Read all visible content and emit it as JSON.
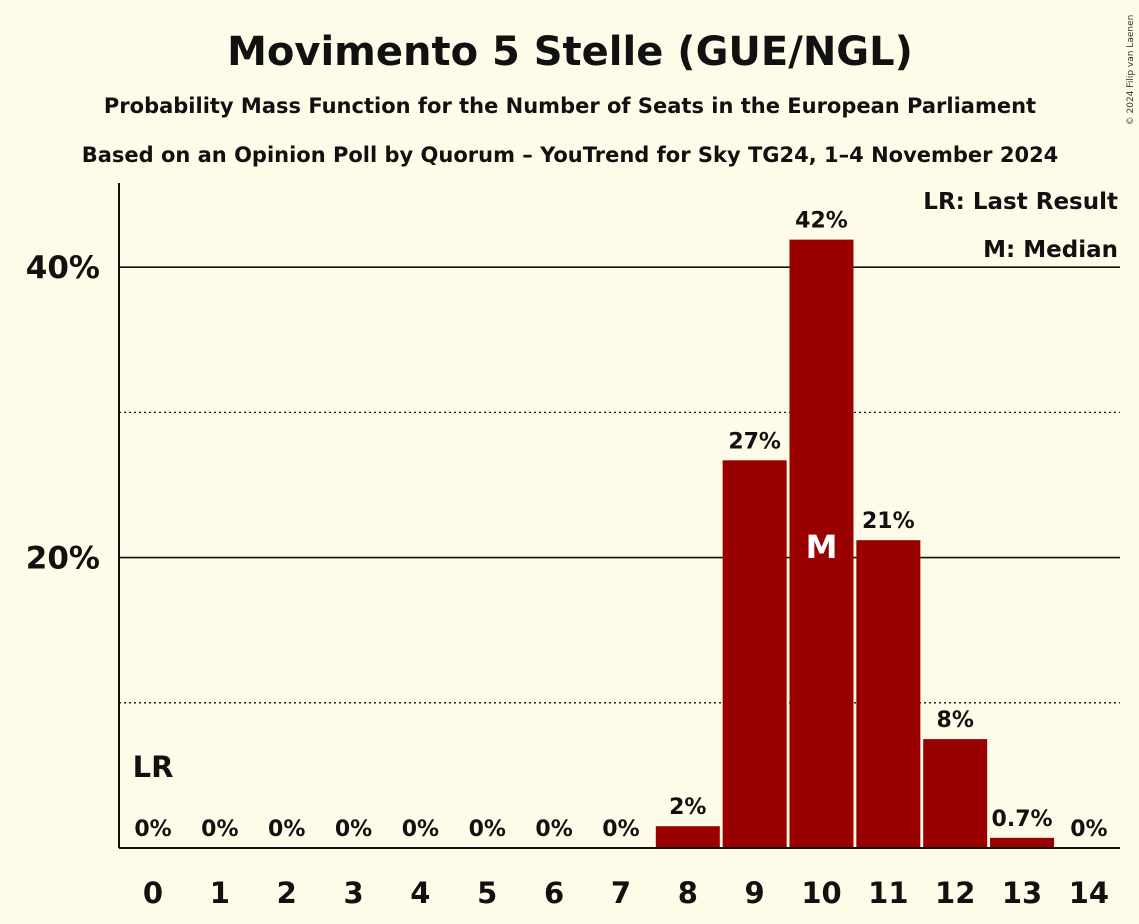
{
  "chart_data": {
    "type": "bar",
    "title": "Movimento 5 Stelle (GUE/NGL)",
    "subtitle": "Probability Mass Function for the Number of Seats in the European Parliament",
    "subtitle2": "Based on an Opinion Poll by Quorum – YouTrend for Sky TG24, 1–4 November 2024",
    "categories": [
      "0",
      "1",
      "2",
      "3",
      "4",
      "5",
      "6",
      "7",
      "8",
      "9",
      "10",
      "11",
      "12",
      "13",
      "14"
    ],
    "values": [
      0,
      0,
      0,
      0,
      0,
      0,
      0,
      0,
      1.5,
      26.7,
      41.9,
      21.2,
      7.5,
      0.7,
      0
    ],
    "labels": [
      "0%",
      "0%",
      "0%",
      "0%",
      "0%",
      "0%",
      "0%",
      "0%",
      "2%",
      "27%",
      "42%",
      "21%",
      "8%",
      "0.7%",
      "0%"
    ],
    "ylim": [
      0,
      46
    ],
    "yticks": [
      {
        "value": 20,
        "label": "20%"
      },
      {
        "value": 40,
        "label": "40%"
      }
    ],
    "minor_gridlines": [
      10,
      30
    ],
    "bar_color": "#990000",
    "last_result_index": 0,
    "median_index": 10,
    "last_result_marker": "LR",
    "median_marker": "M",
    "legend": [
      "LR: Last Result",
      "M: Median"
    ],
    "copyright": "© 2024 Filip van Laenen"
  }
}
